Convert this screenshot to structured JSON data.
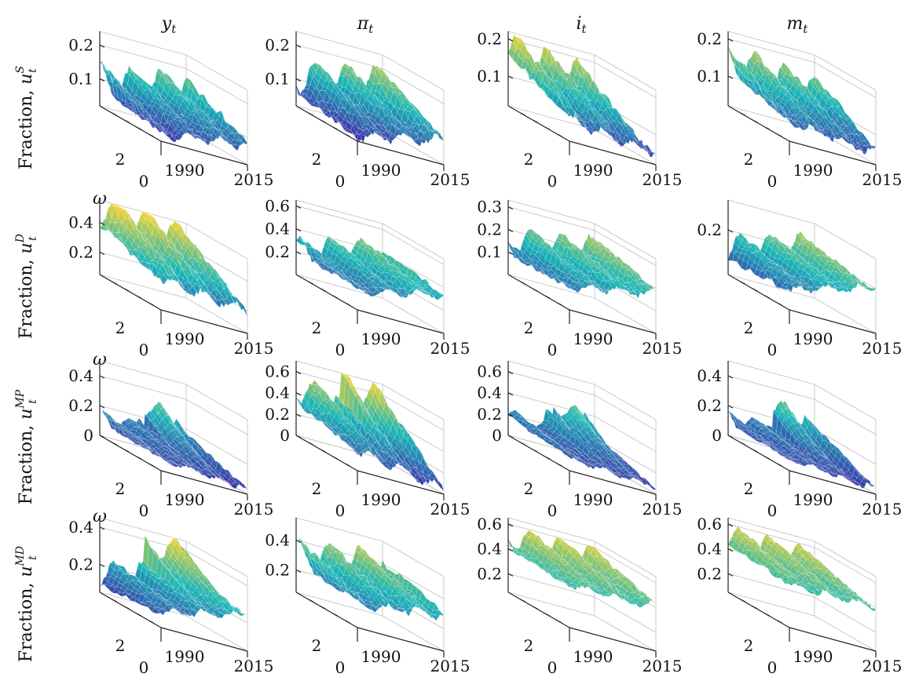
{
  "colors": {
    "low": "#3e26a8",
    "mid": "#18b5b7",
    "high": "#f9d32a"
  },
  "columns": [
    "y_t",
    "π_t",
    "i_t",
    "m_t"
  ],
  "rows": [
    {
      "ylabel": "Fraction,",
      "shock": "u",
      "sub": "t",
      "sup": "S"
    },
    {
      "ylabel": "Fraction,",
      "shock": "u",
      "sub": "t",
      "sup": "D"
    },
    {
      "ylabel": "Fraction,",
      "shock": "u",
      "sub": "t",
      "sup": "MP"
    },
    {
      "ylabel": "Fraction,",
      "shock": "u",
      "sub": "t",
      "sup": "MD"
    }
  ],
  "omega_label": "ω",
  "chart_data": [
    {
      "type": "surface",
      "row": 0,
      "col": 0,
      "z_ticks": [
        "0.1",
        "0.2"
      ],
      "zlim": [
        0.02,
        0.24
      ],
      "omega_ticks": [
        "0",
        "2"
      ],
      "time_ticks": [
        "1990",
        "2015"
      ],
      "z_base": 0.09,
      "z_amp": 0.07,
      "omega_trend": 0.4,
      "time_trend": 0.3,
      "spike": 0.0
    },
    {
      "type": "surface",
      "row": 0,
      "col": 1,
      "z_ticks": [
        "0.1",
        "0.2"
      ],
      "zlim": [
        0.02,
        0.24
      ],
      "omega_ticks": [
        "0",
        "2"
      ],
      "time_ticks": [
        "1990",
        "2015"
      ],
      "z_base": 0.1,
      "z_amp": 0.07,
      "omega_trend": 0.5,
      "time_trend": 0.4,
      "spike": 0.0
    },
    {
      "type": "surface",
      "row": 0,
      "col": 2,
      "z_ticks": [
        "0.1",
        "0.2"
      ],
      "zlim": [
        0.02,
        0.22
      ],
      "omega_ticks": [
        "0",
        "2"
      ],
      "time_ticks": [
        "1990",
        "2015"
      ],
      "z_base": 0.11,
      "z_amp": 0.07,
      "omega_trend": 0.6,
      "time_trend": -0.2,
      "spike": 0.0
    },
    {
      "type": "surface",
      "row": 0,
      "col": 3,
      "z_ticks": [
        "0.1",
        "0.2"
      ],
      "zlim": [
        0.02,
        0.22
      ],
      "omega_ticks": [
        "0",
        "2"
      ],
      "time_ticks": [
        "1990",
        "2015"
      ],
      "z_base": 0.1,
      "z_amp": 0.06,
      "omega_trend": 0.6,
      "time_trend": -0.2,
      "spike": 0.0
    },
    {
      "type": "surface",
      "row": 1,
      "col": 0,
      "z_ticks": [
        "0.2",
        "0.4"
      ],
      "zlim": [
        0.05,
        0.55
      ],
      "omega_ticks": [
        "0",
        "2"
      ],
      "time_ticks": [
        "1990",
        "2015"
      ],
      "z_base": 0.35,
      "z_amp": 0.16,
      "omega_trend": 0.7,
      "time_trend": -0.2,
      "spike": 0.0
    },
    {
      "type": "surface",
      "row": 1,
      "col": 1,
      "z_ticks": [
        "0.2",
        "0.4",
        "0.6"
      ],
      "zlim": [
        0.0,
        0.65
      ],
      "omega_ticks": [
        "0",
        "2"
      ],
      "time_ticks": [
        "1990",
        "2015"
      ],
      "z_base": 0.28,
      "z_amp": 0.16,
      "omega_trend": 0.2,
      "time_trend": 0.6,
      "spike": 0.0
    },
    {
      "type": "surface",
      "row": 1,
      "col": 2,
      "z_ticks": [
        "0.1",
        "0.2",
        "0.3"
      ],
      "zlim": [
        0.0,
        0.33
      ],
      "omega_ticks": [
        "0",
        "2"
      ],
      "time_ticks": [
        "1990",
        "2015"
      ],
      "z_base": 0.16,
      "z_amp": 0.09,
      "omega_trend": 0.2,
      "time_trend": 0.4,
      "spike": 0.0
    },
    {
      "type": "surface",
      "row": 1,
      "col": 3,
      "z_ticks": [
        "0.2"
      ],
      "zlim": [
        0.05,
        0.3
      ],
      "omega_ticks": [
        "0",
        "2"
      ],
      "time_ticks": [
        "1990",
        "2015"
      ],
      "z_base": 0.17,
      "z_amp": 0.07,
      "omega_trend": 0.1,
      "time_trend": 0.6,
      "spike": 0.0
    },
    {
      "type": "surface",
      "row": 2,
      "col": 0,
      "z_ticks": [
        "0",
        "0.2",
        "0.4"
      ],
      "zlim": [
        0.0,
        0.5
      ],
      "omega_ticks": [
        "0",
        "2"
      ],
      "time_ticks": [
        "1990",
        "2015"
      ],
      "z_base": 0.08,
      "z_amp": 0.08,
      "omega_trend": 0.3,
      "time_trend": -0.3,
      "spike": 0.6
    },
    {
      "type": "surface",
      "row": 2,
      "col": 1,
      "z_ticks": [
        "0",
        "0.2",
        "0.4",
        "0.6"
      ],
      "zlim": [
        0.0,
        0.7
      ],
      "omega_ticks": [
        "0",
        "2"
      ],
      "time_ticks": [
        "1990",
        "2015"
      ],
      "z_base": 0.25,
      "z_amp": 0.2,
      "omega_trend": 0.6,
      "time_trend": -0.4,
      "spike": 0.6
    },
    {
      "type": "surface",
      "row": 2,
      "col": 2,
      "z_ticks": [
        "0",
        "0.2",
        "0.4",
        "0.6"
      ],
      "zlim": [
        0.0,
        0.7
      ],
      "omega_ticks": [
        "0",
        "2"
      ],
      "time_ticks": [
        "1990",
        "2015"
      ],
      "z_base": 0.12,
      "z_amp": 0.1,
      "omega_trend": 0.3,
      "time_trend": -0.3,
      "spike": 0.6
    },
    {
      "type": "surface",
      "row": 2,
      "col": 3,
      "z_ticks": [
        "0",
        "0.2",
        "0.4"
      ],
      "zlim": [
        0.0,
        0.5
      ],
      "omega_ticks": [
        "0",
        "2"
      ],
      "time_ticks": [
        "1990",
        "2015"
      ],
      "z_base": 0.08,
      "z_amp": 0.08,
      "omega_trend": 0.3,
      "time_trend": -0.3,
      "spike": 0.6
    },
    {
      "type": "surface",
      "row": 3,
      "col": 0,
      "z_ticks": [
        "0.2",
        "0.4"
      ],
      "zlim": [
        0.05,
        0.45
      ],
      "omega_ticks": [
        "0",
        "2"
      ],
      "time_ticks": [
        "1990",
        "2015"
      ],
      "z_base": 0.2,
      "z_amp": 0.09,
      "omega_trend": 0.1,
      "time_trend": 0.6,
      "spike": 0.2
    },
    {
      "type": "surface",
      "row": 3,
      "col": 1,
      "z_ticks": [
        "0.2",
        "0.4"
      ],
      "zlim": [
        0.05,
        0.55
      ],
      "omega_ticks": [
        "0",
        "2"
      ],
      "time_ticks": [
        "1990",
        "2015"
      ],
      "z_base": 0.3,
      "z_amp": 0.15,
      "omega_trend": 0.3,
      "time_trend": 0.3,
      "spike": 0.0
    },
    {
      "type": "surface",
      "row": 3,
      "col": 2,
      "z_ticks": [
        "0.2",
        "0.4",
        "0.6"
      ],
      "zlim": [
        0.05,
        0.65
      ],
      "omega_ticks": [
        "0",
        "2"
      ],
      "time_ticks": [
        "1990",
        "2015"
      ],
      "z_base": 0.45,
      "z_amp": 0.15,
      "omega_trend": 0.3,
      "time_trend": 0.0,
      "spike": 0.0
    },
    {
      "type": "surface",
      "row": 3,
      "col": 3,
      "z_ticks": [
        "0.2",
        "0.4",
        "0.6"
      ],
      "zlim": [
        0.05,
        0.65
      ],
      "omega_ticks": [
        "0",
        "2"
      ],
      "time_ticks": [
        "1990",
        "2015"
      ],
      "z_base": 0.45,
      "z_amp": 0.14,
      "omega_trend": 0.3,
      "time_trend": 0.0,
      "spike": 0.0
    }
  ]
}
